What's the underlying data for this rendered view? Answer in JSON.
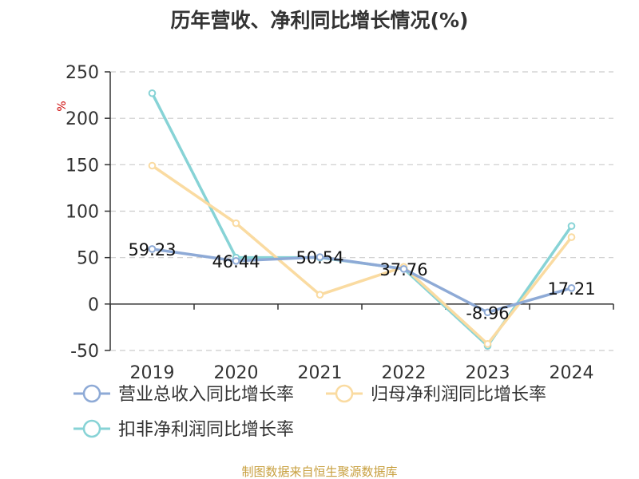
{
  "chart_data": {
    "type": "line",
    "title": "历年营收、净利同比增长情况(%)",
    "ylabel": "%",
    "categories": [
      "2019",
      "2020",
      "2021",
      "2022",
      "2023",
      "2024"
    ],
    "ylim": [
      -50,
      250
    ],
    "yticks": [
      -50,
      0,
      50,
      100,
      150,
      200,
      250
    ],
    "grid": true,
    "legend_position": "bottom",
    "series": [
      {
        "name": "营业总收入同比增长率",
        "color": "#8eaad6",
        "values": [
          59.23,
          46.44,
          50.54,
          37.76,
          -8.96,
          17.21
        ],
        "labels": [
          "59.23",
          "46.44",
          "50.54",
          "37.76",
          "-8.96",
          "17.21"
        ]
      },
      {
        "name": "归母净利润同比增长率",
        "color": "#fadba1",
        "values": [
          149,
          87,
          10,
          40,
          -43,
          72
        ]
      },
      {
        "name": "扣非净利润同比增长率",
        "color": "#87d3d6",
        "values": [
          227,
          50,
          50,
          38,
          -45,
          84
        ]
      }
    ]
  },
  "source": "制图数据来自恒生聚源数据库"
}
